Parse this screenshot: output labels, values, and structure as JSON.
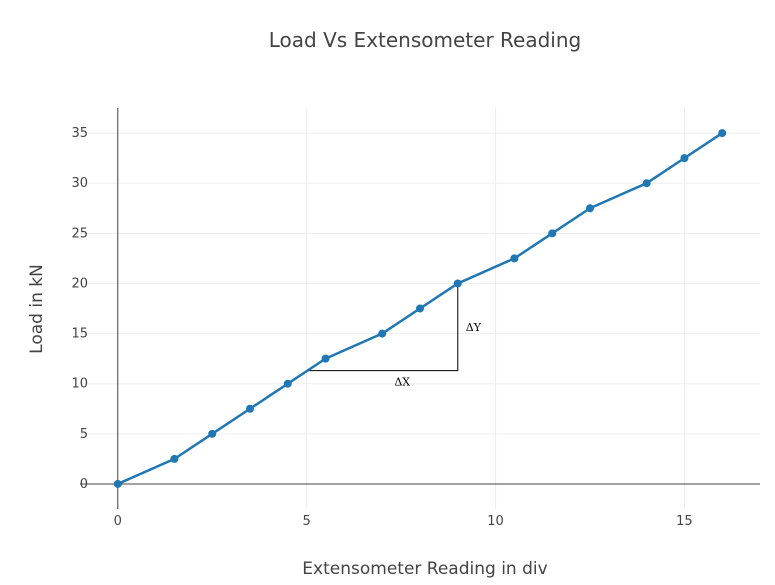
{
  "chart_data": {
    "type": "line",
    "title": "Load Vs Extensometer Reading",
    "xlabel": "Extensometer Reading in div",
    "ylabel": "Load in kN",
    "xlim": [
      -1,
      17
    ],
    "ylim": [
      -2.5,
      37.5
    ],
    "xticks": [
      0,
      5,
      10,
      15
    ],
    "yticks": [
      0,
      5,
      10,
      15,
      20,
      25,
      30,
      35
    ],
    "grid": true,
    "series": [
      {
        "color": "#1f77b4",
        "points": [
          {
            "x": 0,
            "y": 0
          },
          {
            "x": 1.5,
            "y": 2.5
          },
          {
            "x": 2.5,
            "y": 5
          },
          {
            "x": 3.5,
            "y": 7.5
          },
          {
            "x": 4.5,
            "y": 10
          },
          {
            "x": 5.5,
            "y": 12.5
          },
          {
            "x": 7,
            "y": 15
          },
          {
            "x": 8,
            "y": 17.5
          },
          {
            "x": 9,
            "y": 20
          },
          {
            "x": 10.5,
            "y": 22.5
          },
          {
            "x": 11.5,
            "y": 25
          },
          {
            "x": 12.5,
            "y": 27.5
          },
          {
            "x": 14,
            "y": 30
          },
          {
            "x": 15,
            "y": 32.5
          },
          {
            "x": 16,
            "y": 35
          }
        ]
      }
    ],
    "annotations": {
      "slope_triangle": {
        "start": {
          "x": 5,
          "y": 11.3
        },
        "corner": {
          "x": 9,
          "y": 11.3
        },
        "end": {
          "x": 9,
          "y": 20
        },
        "dx_label": "ΔX",
        "dy_label": "ΔY"
      }
    }
  }
}
